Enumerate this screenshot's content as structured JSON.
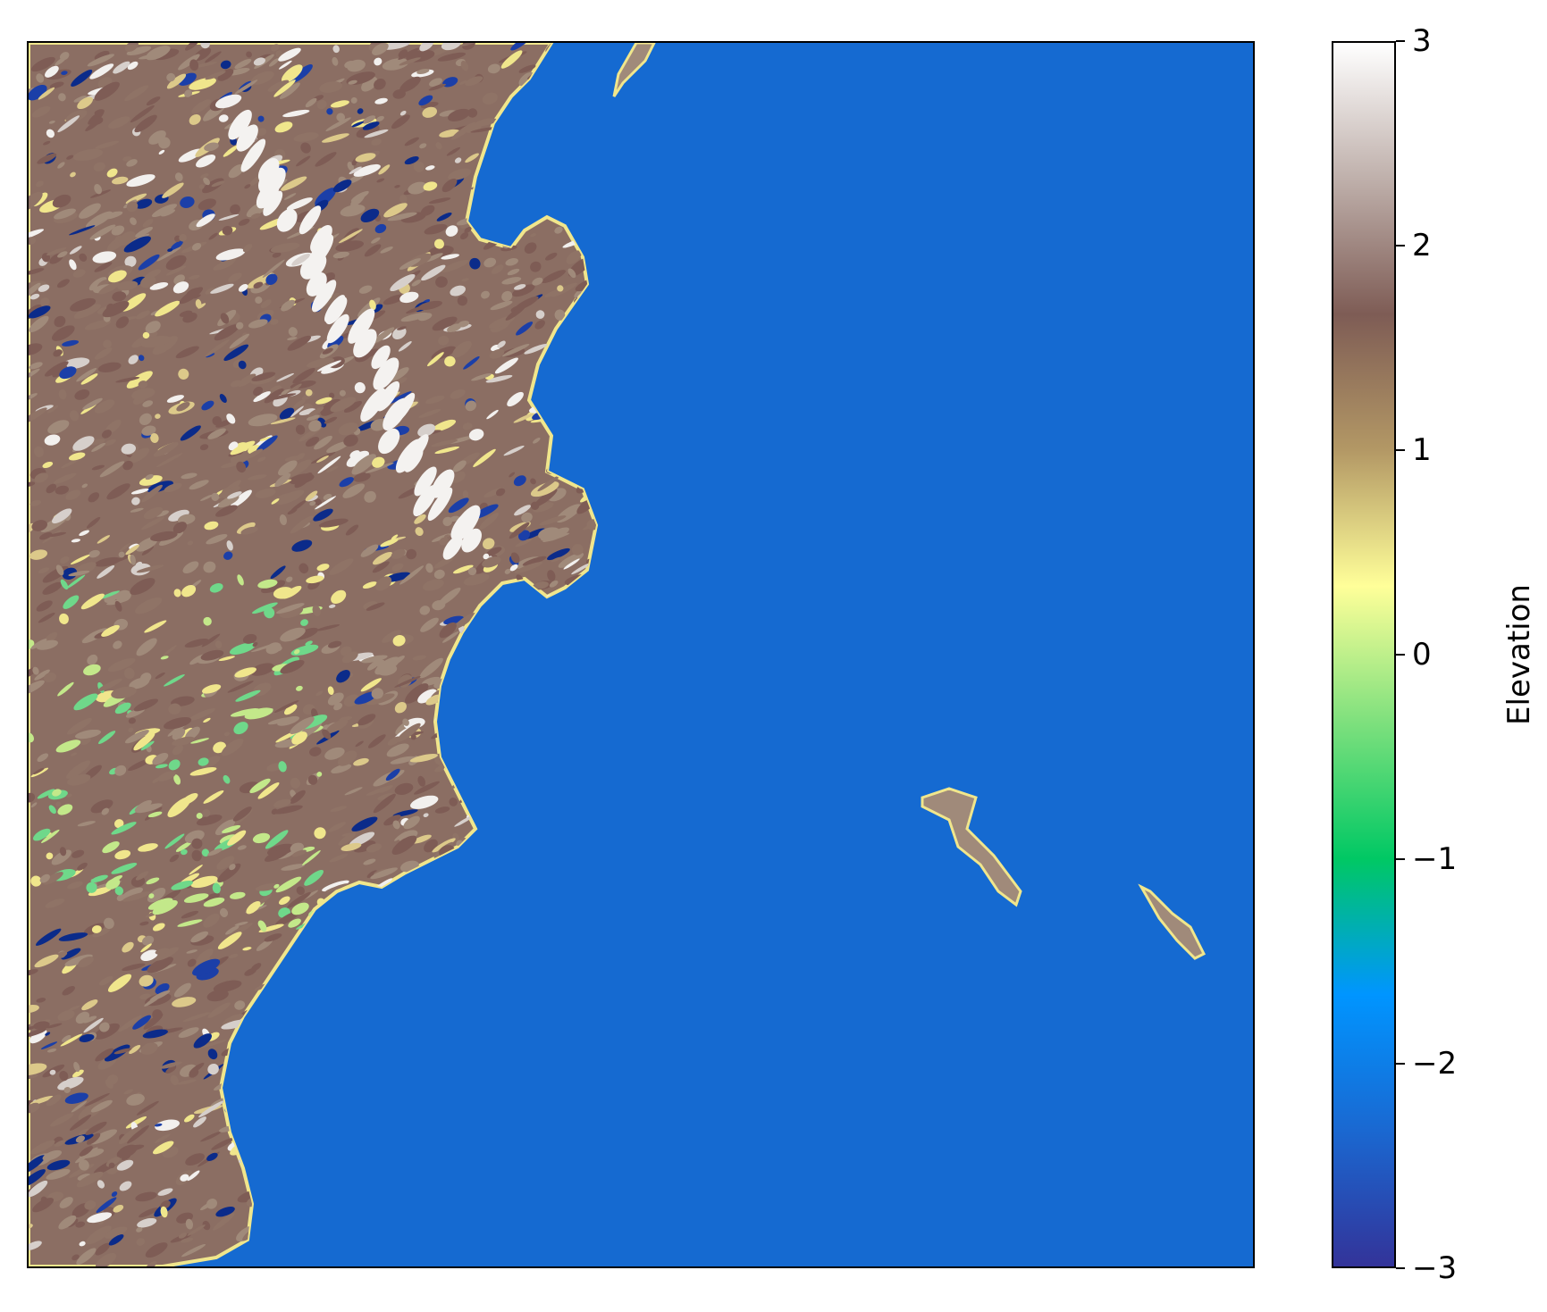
{
  "colorbar": {
    "label": "Elevation",
    "vmin": -3,
    "vmax": 3,
    "ticks": [
      {
        "value": 3,
        "label": "3"
      },
      {
        "value": 2,
        "label": "2"
      },
      {
        "value": 1,
        "label": "1"
      },
      {
        "value": 0,
        "label": "0"
      },
      {
        "value": -1,
        "label": "−1"
      },
      {
        "value": -2,
        "label": "−2"
      },
      {
        "value": -3,
        "label": "−3"
      }
    ],
    "colormap": [
      "#333399",
      "#1a68d1",
      "#0095ff",
      "#00c864",
      "#7de07d",
      "#ffff99",
      "#b39865",
      "#7e5c55",
      "#bfb0ab",
      "#ffffff"
    ]
  },
  "map": {
    "sea_color": "#156ad1",
    "land_palette": [
      "#7e5c55",
      "#8f7366",
      "#a08a7a",
      "#d6cfcb",
      "#f2f0ee",
      "#dcc98a",
      "#f0e68c",
      "#c3e88a",
      "#6fd88a",
      "#2bb5a0",
      "#1b3fa8",
      "#0b2b8a"
    ]
  }
}
